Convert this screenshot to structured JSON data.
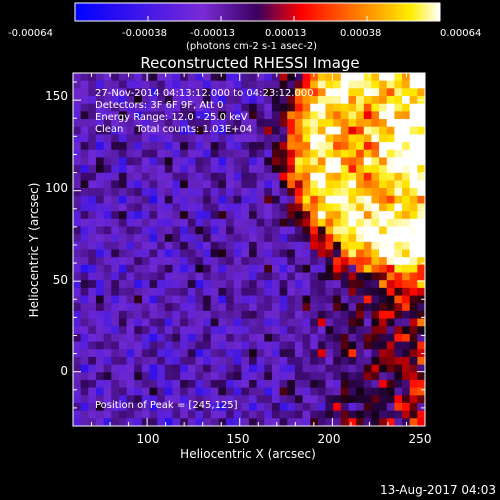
{
  "chart_data": {
    "type": "heatmap",
    "title": "Reconstructed RHESSI Image",
    "xlabel": "Heliocentric X (arcsec)",
    "ylabel": "Heliocentric Y (arcsec)",
    "xlim": [
      60,
      250
    ],
    "ylim": [
      -30,
      165
    ],
    "x_ticks": [
      "100",
      "150",
      "200",
      "250"
    ],
    "y_ticks": [
      "0",
      "50",
      "100",
      "150"
    ],
    "colorbar": {
      "min": -0.00064,
      "max": 0.00064,
      "tick_labels": [
        "-0.00064",
        "-0.00038",
        "-0.00013",
        "0.00013",
        "0.00038",
        "0.00064"
      ],
      "unit_label": "(photons cm-2 s-1 asec-2)",
      "colors": [
        "#0000ff",
        "#8a2be2",
        "#ff0000",
        "#ff8c00",
        "#ffff00",
        "#ffffff"
      ]
    },
    "annotations": [
      "27-Nov-2014 04:13:12.000 to 04:23:12.000",
      "Detectors: 3F 6F 9F, Att 0",
      "Energy Range: 12.0 - 25.0 keV",
      "Clean    Total counts: 1.03E+04"
    ],
    "peak_label": "Position of Peak = [245,125]",
    "peak": [
      245,
      125
    ],
    "footer_date": "13-Aug-2017 04:03"
  }
}
